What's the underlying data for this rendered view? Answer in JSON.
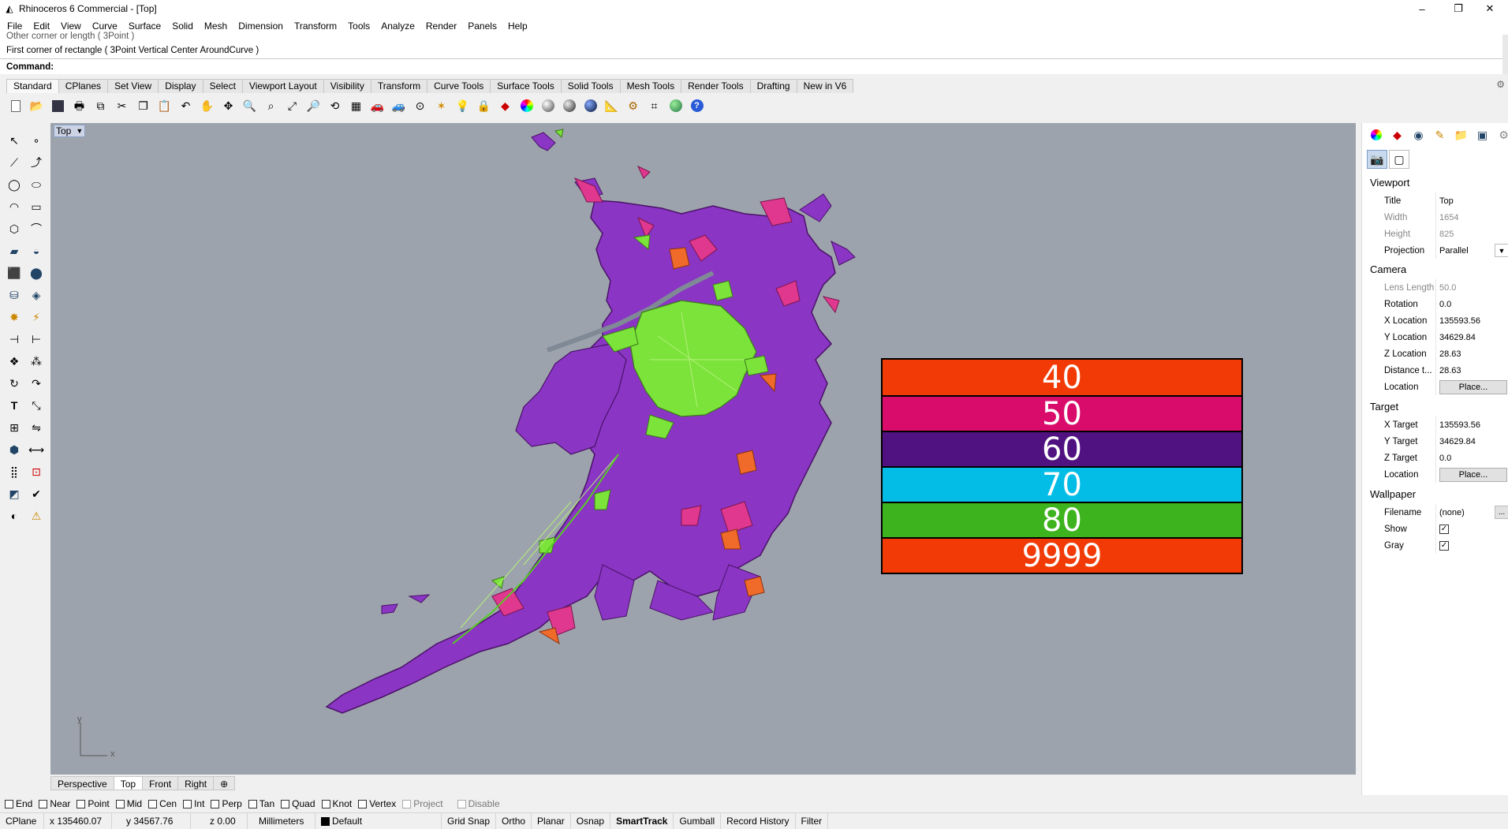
{
  "window": {
    "title": "Rhinoceros 6 Commercial - [Top]",
    "minimize": "–",
    "restore": "❐",
    "close": "✕"
  },
  "menu": [
    "File",
    "Edit",
    "View",
    "Curve",
    "Surface",
    "Solid",
    "Mesh",
    "Dimension",
    "Transform",
    "Tools",
    "Analyze",
    "Render",
    "Panels",
    "Help"
  ],
  "command": {
    "history": [
      "Other corner or length ( 3Point )",
      "First corner of rectangle ( 3Point  Vertical  Center  AroundCurve )"
    ],
    "label": "Command:",
    "value": ""
  },
  "toolbar_tabs": [
    "Standard",
    "CPlanes",
    "Set View",
    "Display",
    "Select",
    "Viewport Layout",
    "Visibility",
    "Transform",
    "Curve Tools",
    "Surface Tools",
    "Solid Tools",
    "Mesh Tools",
    "Render Tools",
    "Drafting",
    "New in V6"
  ],
  "viewport": {
    "title": "Top",
    "background": "#9da3ac"
  },
  "legend": [
    {
      "label": "40",
      "color": "#f13a06"
    },
    {
      "label": "50",
      "color": "#d90c6b"
    },
    {
      "label": "60",
      "color": "#501281"
    },
    {
      "label": "70",
      "color": "#03bde6"
    },
    {
      "label": "80",
      "color": "#3db31d"
    },
    {
      "label": "9999",
      "color": "#f13a06"
    }
  ],
  "axis": {
    "x": "x",
    "y": "y"
  },
  "viewport_tabs": [
    "Perspective",
    "Top",
    "Front",
    "Right"
  ],
  "osnaps": [
    {
      "label": "End",
      "checked": false
    },
    {
      "label": "Near",
      "checked": false
    },
    {
      "label": "Point",
      "checked": false
    },
    {
      "label": "Mid",
      "checked": false
    },
    {
      "label": "Cen",
      "checked": false
    },
    {
      "label": "Int",
      "checked": false
    },
    {
      "label": "Perp",
      "checked": false
    },
    {
      "label": "Tan",
      "checked": false
    },
    {
      "label": "Quad",
      "checked": false
    },
    {
      "label": "Knot",
      "checked": false
    },
    {
      "label": "Vertex",
      "checked": false
    },
    {
      "label": "Project",
      "checked": false
    },
    {
      "label": "Disable",
      "checked": false
    }
  ],
  "status": {
    "cplane": "CPlane",
    "x": "x 135460.07",
    "y": "y 34567.76",
    "z": "z 0.00",
    "units": "Millimeters",
    "layer": "Default",
    "toggles": [
      "Grid Snap",
      "Ortho",
      "Planar",
      "Osnap",
      "SmartTrack",
      "Gumball",
      "Record History",
      "Filter"
    ]
  },
  "properties": {
    "viewport_heading": "Viewport",
    "title_label": "Title",
    "title_value": "Top",
    "width_label": "Width",
    "width_value": "1654",
    "height_label": "Height",
    "height_value": "825",
    "projection_label": "Projection",
    "projection_value": "Parallel",
    "camera_heading": "Camera",
    "lens_label": "Lens Length",
    "lens_value": "50.0",
    "rotation_label": "Rotation",
    "rotation_value": "0.0",
    "xloc_label": "X Location",
    "xloc_value": "135593.56",
    "yloc_label": "Y Location",
    "yloc_value": "34629.84",
    "zloc_label": "Z Location",
    "zloc_value": "28.63",
    "dist_label": "Distance t...",
    "dist_value": "28.63",
    "location_label": "Location",
    "place_label": "Place...",
    "target_heading": "Target",
    "xt_label": "X Target",
    "xt_value": "135593.56",
    "yt_label": "Y Target",
    "yt_value": "34629.84",
    "zt_label": "Z Target",
    "zt_value": "0.0",
    "tloc_label": "Location",
    "tplace_label": "Place...",
    "wallpaper_heading": "Wallpaper",
    "filename_label": "Filename",
    "filename_value": "(none)",
    "browse_label": "...",
    "show_label": "Show",
    "gray_label": "Gray"
  }
}
